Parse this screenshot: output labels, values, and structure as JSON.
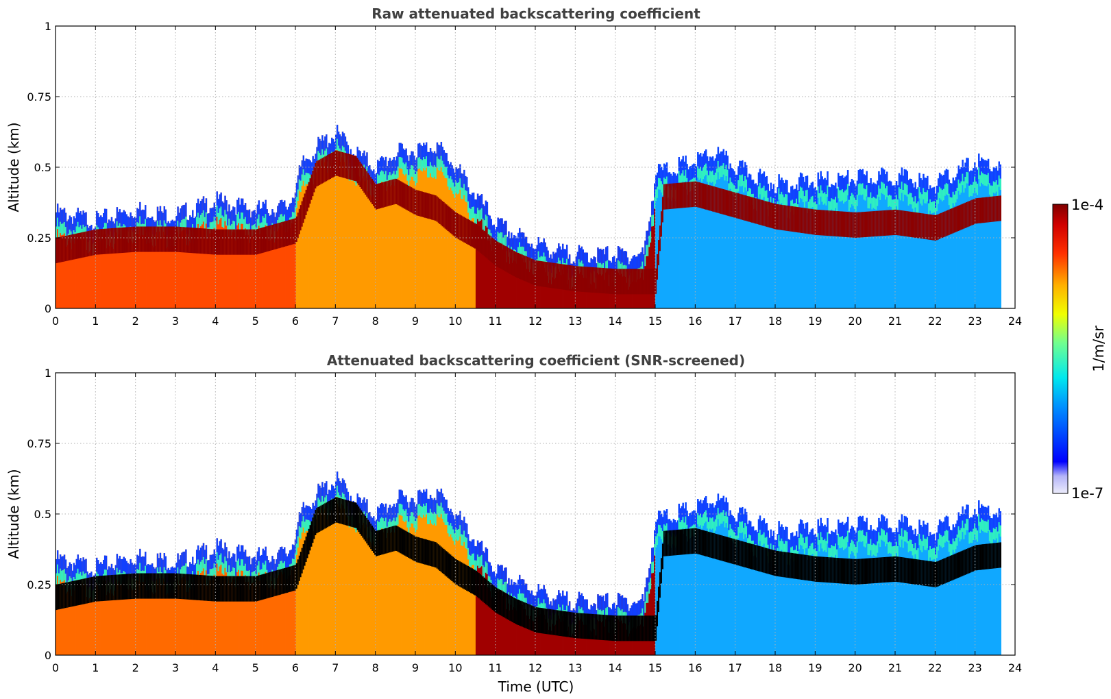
{
  "chart_data": [
    {
      "type": "heatmap",
      "title": "Raw attenuated backscattering coefficient",
      "xlabel": "",
      "ylabel": "Altitude (km)",
      "xlim": [
        0,
        24
      ],
      "ylim": [
        0,
        1
      ],
      "xticks": [
        "0",
        "1",
        "2",
        "3",
        "4",
        "5",
        "6",
        "7",
        "8",
        "9",
        "10",
        "11",
        "12",
        "13",
        "14",
        "15",
        "16",
        "17",
        "18",
        "19",
        "20",
        "21",
        "22",
        "23",
        "24"
      ],
      "yticks": [
        "0",
        "0.25",
        "0.5",
        "0.75",
        "1"
      ],
      "grid": true,
      "data_end_time": 23.65,
      "layer_top_km": [
        [
          0,
          0.34
        ],
        [
          1,
          0.31
        ],
        [
          2,
          0.35
        ],
        [
          3,
          0.33
        ],
        [
          4,
          0.38
        ],
        [
          5,
          0.35
        ],
        [
          5.8,
          0.36
        ],
        [
          6.2,
          0.52
        ],
        [
          6.6,
          0.58
        ],
        [
          7,
          0.62
        ],
        [
          7.5,
          0.55
        ],
        [
          8,
          0.5
        ],
        [
          8.5,
          0.55
        ],
        [
          9,
          0.56
        ],
        [
          9.5,
          0.58
        ],
        [
          10,
          0.5
        ],
        [
          10.5,
          0.4
        ],
        [
          11,
          0.3
        ],
        [
          11.5,
          0.26
        ],
        [
          12,
          0.23
        ],
        [
          12.5,
          0.2
        ],
        [
          13,
          0.19
        ],
        [
          14,
          0.19
        ],
        [
          14.7,
          0.19
        ],
        [
          15,
          0.48
        ],
        [
          16,
          0.52
        ],
        [
          16.5,
          0.55
        ],
        [
          17,
          0.5
        ],
        [
          18,
          0.44
        ],
        [
          19,
          0.45
        ],
        [
          20,
          0.46
        ],
        [
          21,
          0.47
        ],
        [
          22,
          0.44
        ],
        [
          23,
          0.52
        ],
        [
          23.65,
          0.5
        ]
      ],
      "strong_layer_km": [
        [
          0,
          0.21
        ],
        [
          1,
          0.24
        ],
        [
          2,
          0.25
        ],
        [
          3,
          0.25
        ],
        [
          4,
          0.24
        ],
        [
          5,
          0.24
        ],
        [
          6,
          0.28
        ],
        [
          6.5,
          0.48
        ],
        [
          7,
          0.52
        ],
        [
          7.5,
          0.5
        ],
        [
          8,
          0.4
        ],
        [
          8.5,
          0.42
        ],
        [
          9,
          0.38
        ],
        [
          9.5,
          0.36
        ],
        [
          10,
          0.3
        ],
        [
          10.5,
          0.26
        ],
        [
          11,
          0.2
        ],
        [
          11.5,
          0.16
        ],
        [
          12,
          0.13
        ],
        [
          13,
          0.11
        ],
        [
          14,
          0.1
        ],
        [
          15,
          0.1
        ],
        [
          15.2,
          0.4
        ],
        [
          16,
          0.41
        ],
        [
          17,
          0.37
        ],
        [
          18,
          0.33
        ],
        [
          19,
          0.31
        ],
        [
          20,
          0.3
        ],
        [
          21,
          0.31
        ],
        [
          22,
          0.29
        ],
        [
          23,
          0.35
        ],
        [
          23.65,
          0.36
        ]
      ],
      "colorbar": {
        "min_label": "1e-7",
        "max_label": "1e-4",
        "label": "1/m/sr"
      }
    },
    {
      "type": "heatmap",
      "title": "Attenuated backscattering coefficient (SNR-screened)",
      "xlabel": "Time (UTC)",
      "ylabel": "Altitude (km)",
      "xlim": [
        0,
        24
      ],
      "ylim": [
        0,
        1
      ],
      "xticks": [
        "0",
        "1",
        "2",
        "3",
        "4",
        "5",
        "6",
        "7",
        "8",
        "9",
        "10",
        "11",
        "12",
        "13",
        "14",
        "15",
        "16",
        "17",
        "18",
        "19",
        "20",
        "21",
        "22",
        "23",
        "24"
      ],
      "yticks": [
        "0",
        "0.25",
        "0.5",
        "0.75",
        "1"
      ],
      "grid": true,
      "data_end_time": 23.65
    }
  ]
}
